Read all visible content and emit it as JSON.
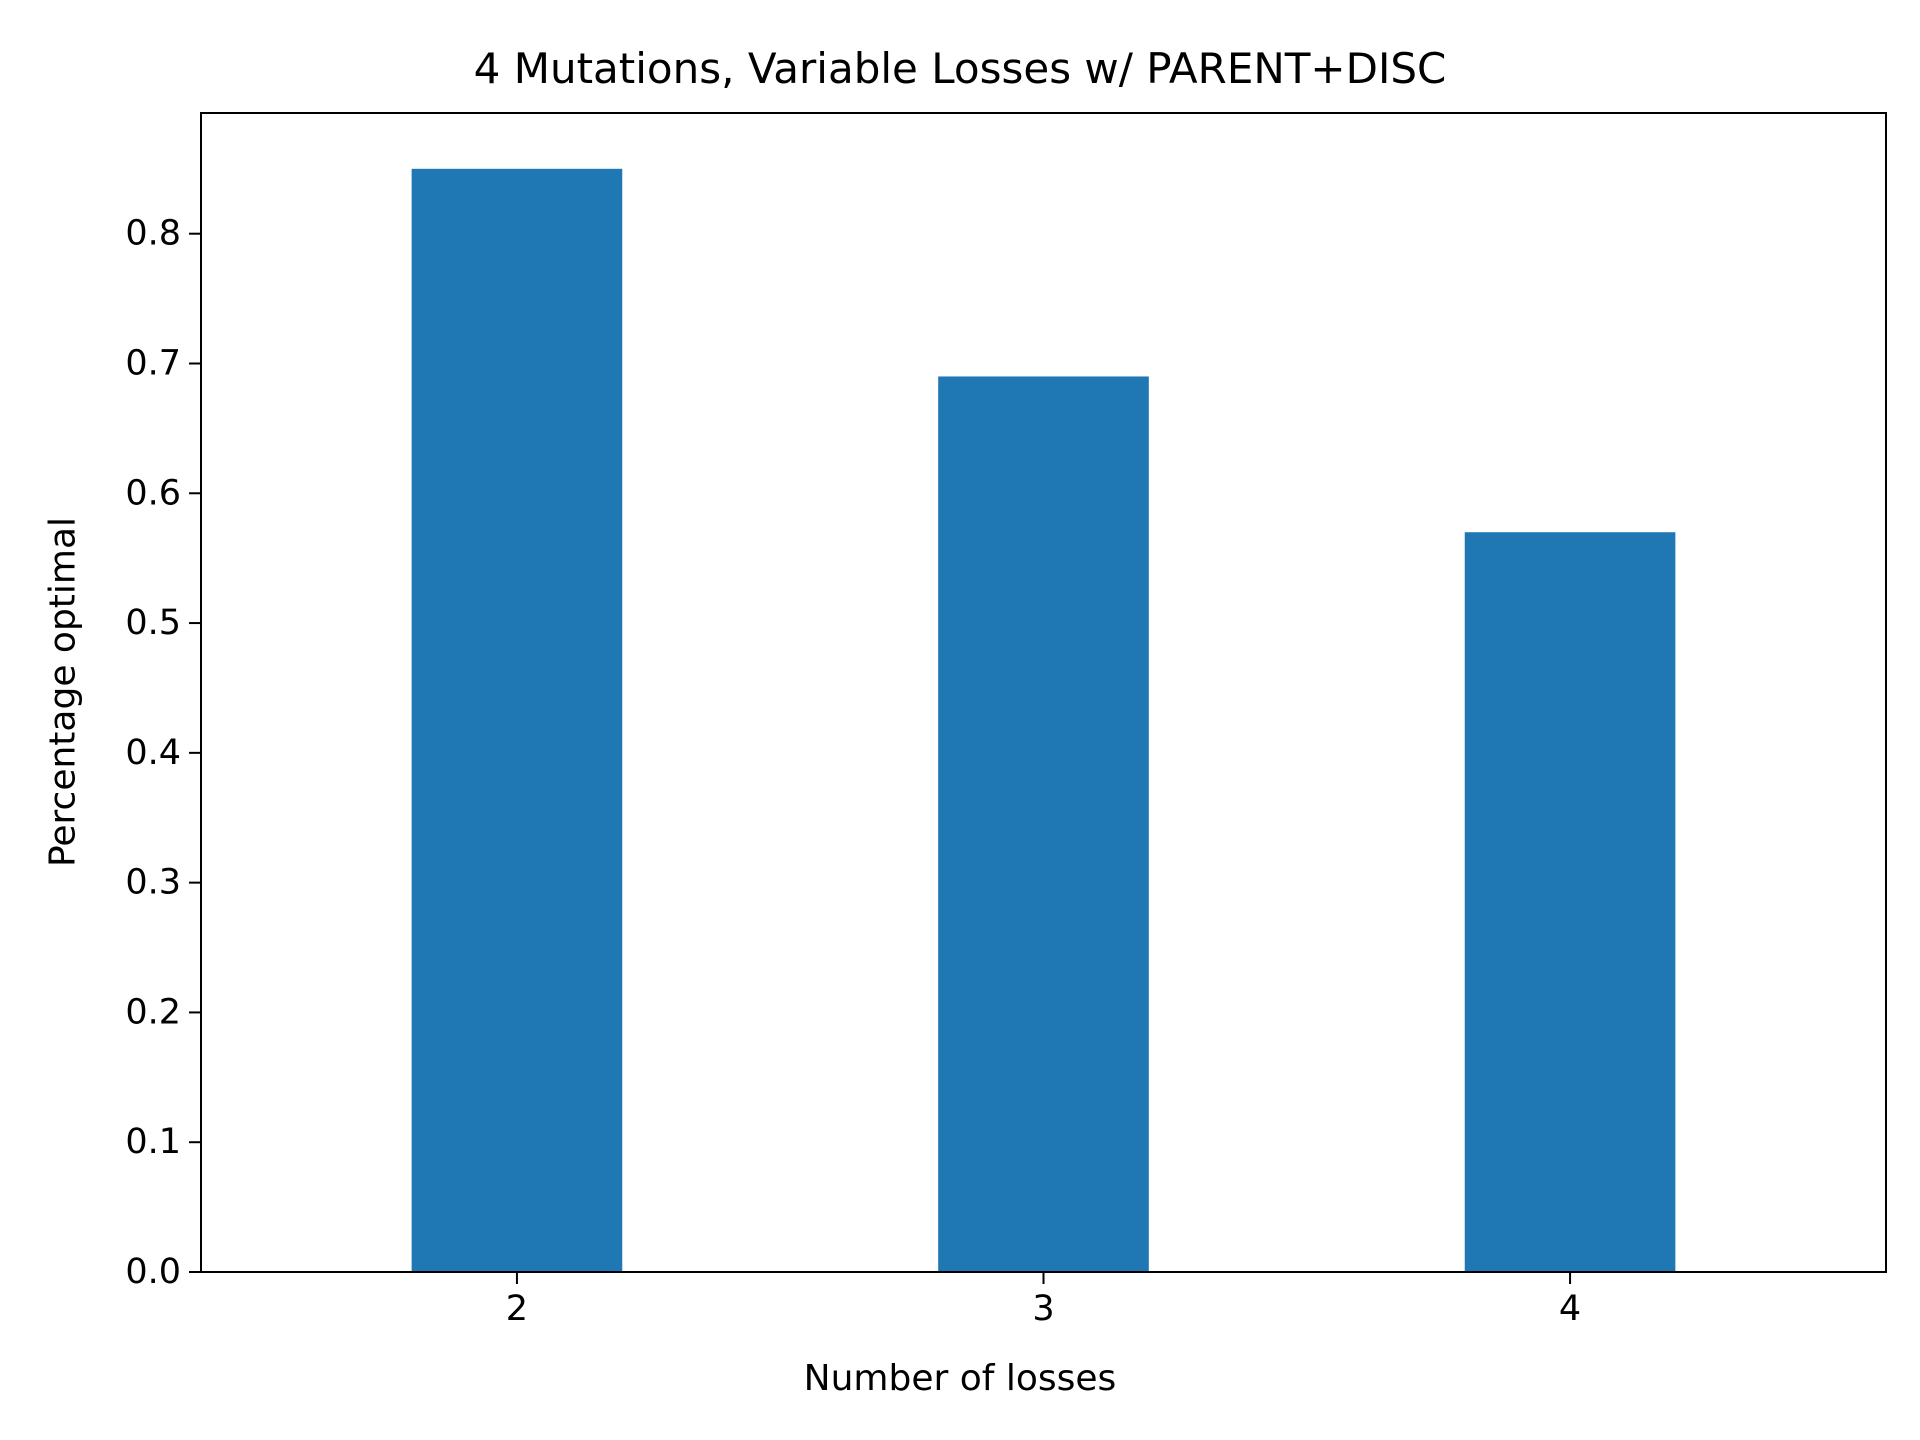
{
  "chart_data": {
    "type": "bar",
    "title": "4 Mutations, Variable Losses w/ PARENT+DISC",
    "xlabel": "Number of losses",
    "ylabel": "Percentage optimal",
    "categories": [
      "2",
      "3",
      "4"
    ],
    "values": [
      0.85,
      0.69,
      0.57
    ],
    "ylim": [
      0,
      0.893
    ],
    "yticks": [
      "0.0",
      "0.1",
      "0.2",
      "0.3",
      "0.4",
      "0.5",
      "0.6",
      "0.7",
      "0.8"
    ],
    "grid": false,
    "legend": "none",
    "bar_color": "#1f77b4"
  }
}
